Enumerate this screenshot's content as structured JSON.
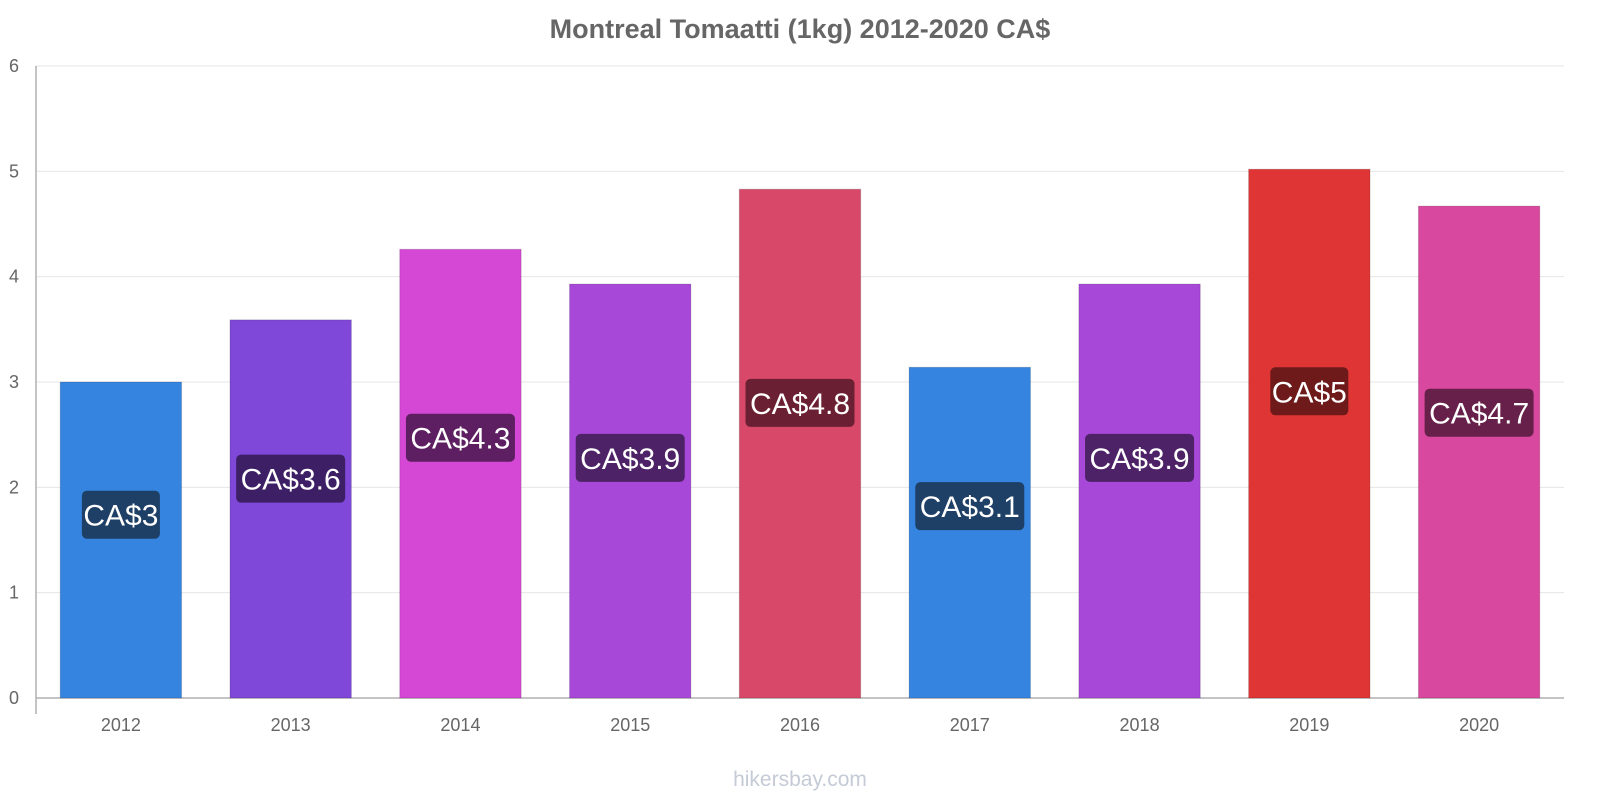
{
  "chart_data": {
    "type": "bar",
    "title": "Montreal Tomaatti (1kg) 2012-2020 CA$",
    "xlabel": "",
    "ylabel": "",
    "categories": [
      "2012",
      "2013",
      "2014",
      "2015",
      "2016",
      "2017",
      "2018",
      "2019",
      "2020"
    ],
    "values": [
      3.0,
      3.59,
      4.26,
      3.93,
      4.83,
      3.14,
      3.93,
      5.02,
      4.67
    ],
    "data_labels": [
      "CA$3",
      "CA$3.6",
      "CA$4.3",
      "CA$3.9",
      "CA$4.8",
      "CA$3.1",
      "CA$3.9",
      "CA$5",
      "CA$4.7"
    ],
    "bar_colors": [
      "#3584e0",
      "#8048d8",
      "#d548d5",
      "#a748d8",
      "#d84868",
      "#3584e0",
      "#a748d8",
      "#e03535",
      "#d8489e"
    ],
    "label_colors": [
      "#1e3f66",
      "#3d1f66",
      "#5e1f62",
      "#4d2266",
      "#6b1f32",
      "#1e3f66",
      "#4d2266",
      "#6e1a1a",
      "#66204a"
    ],
    "yticks": [
      "0",
      "1",
      "2",
      "3",
      "4",
      "5",
      "6"
    ],
    "ylim": [
      0,
      6
    ],
    "grid": true,
    "legend": "none"
  },
  "watermark": "hikersbay.com"
}
